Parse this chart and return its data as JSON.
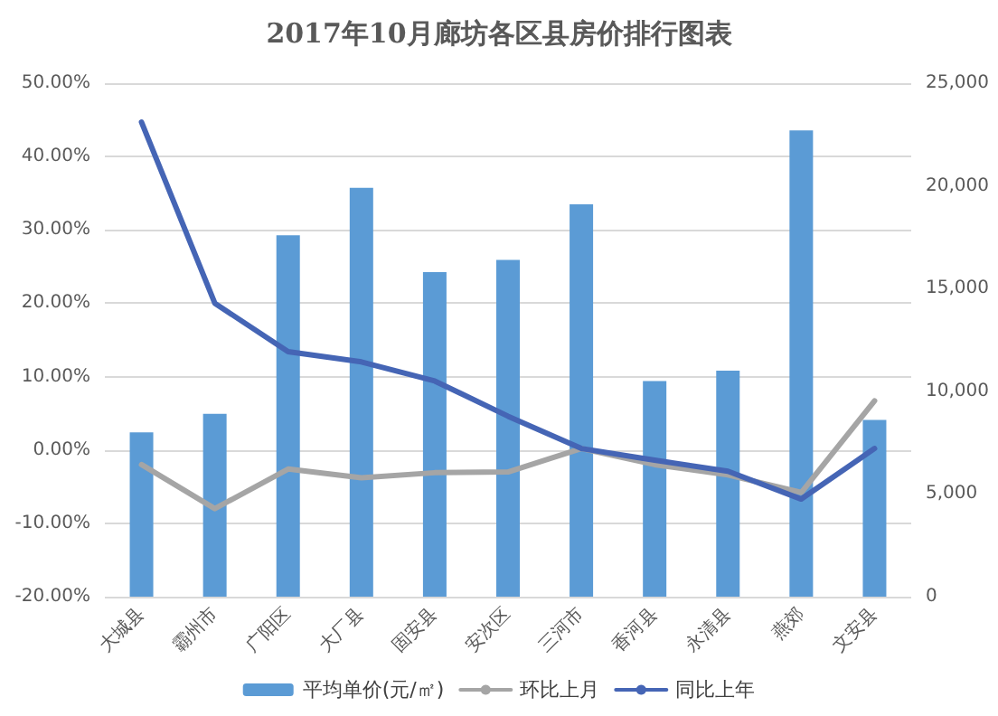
{
  "chart_data": {
    "type": "bar",
    "title": "2017年10月廊坊各区县房价排行图表",
    "categories": [
      "大城县",
      "霸州市",
      "广阳区",
      "大厂县",
      "固安县",
      "安次区",
      "三河市",
      "香河县",
      "永清县",
      "燕郊",
      "文安县"
    ],
    "series": [
      {
        "name": "平均单价(元/㎡)",
        "axis": "y2",
        "color": "#5b9bd5",
        "values": [
          8000,
          8900,
          17600,
          19900,
          15800,
          16400,
          19100,
          10500,
          11000,
          22700,
          8600
        ]
      },
      {
        "name": "环比上月",
        "type": "line",
        "color": "#a5a5a5",
        "values": [
          -2,
          -8,
          -2.6,
          -3.8,
          -3.1,
          -3,
          0.2,
          -2,
          -3.4,
          -5.8,
          6.7
        ]
      },
      {
        "name": "同比上年",
        "type": "line",
        "color": "#4565b5",
        "values": [
          44.7,
          20,
          13.4,
          12,
          9.4,
          4.6,
          0.2,
          -1.4,
          -2.9,
          -6.7,
          0.2
        ]
      }
    ],
    "ylim": [
      -20,
      50
    ],
    "yticks": [
      {
        "value": -20,
        "label": "-20.00%"
      },
      {
        "value": -10,
        "label": "-10.00%"
      },
      {
        "value": 0,
        "label": "0.00%"
      },
      {
        "value": 10,
        "label": "10.00%"
      },
      {
        "value": 20,
        "label": "20.00%"
      },
      {
        "value": 30,
        "label": "30.00%"
      },
      {
        "value": 40,
        "label": "40.00%"
      },
      {
        "value": 50,
        "label": "50.00%"
      }
    ],
    "y2lim": [
      0,
      25000
    ],
    "y2ticks": [
      {
        "value": 0,
        "label": "0"
      },
      {
        "value": 5000,
        "label": "5,000"
      },
      {
        "value": 10000,
        "label": "10,000"
      },
      {
        "value": 15000,
        "label": "15,000"
      },
      {
        "value": 20000,
        "label": "20,000"
      },
      {
        "value": 25000,
        "label": "25,000"
      }
    ],
    "grid": "y",
    "legend": "bottom",
    "marker": "none",
    "line_style": "solid"
  }
}
